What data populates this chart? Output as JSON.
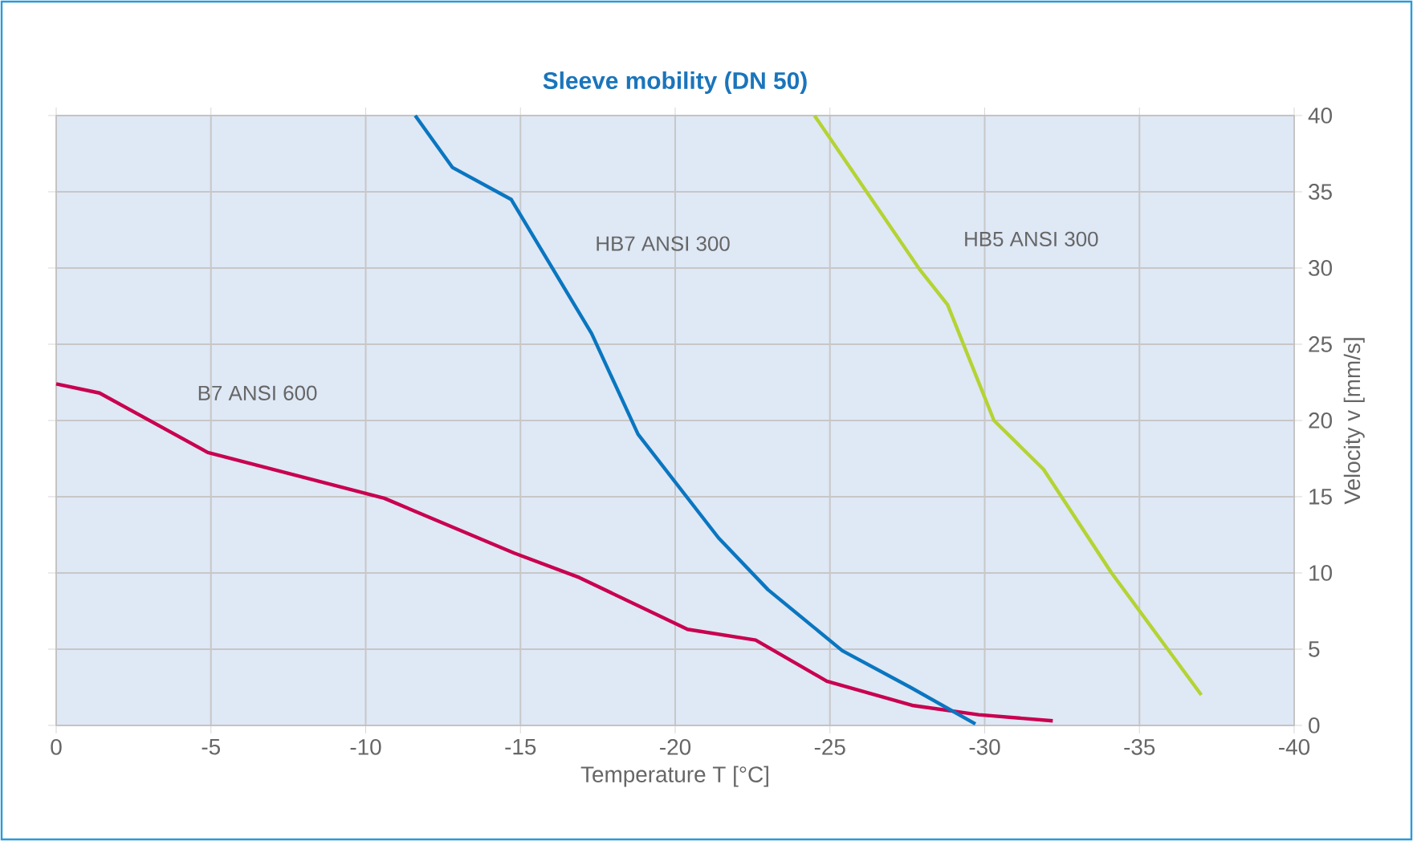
{
  "chart_data": {
    "type": "line",
    "title": "Sleeve mobility (DN 50)",
    "xlabel": "Temperature T [°C]",
    "ylabel": "Velocity v [mm/s]",
    "xlim": [
      0,
      -40
    ],
    "xticks": [
      0,
      -5,
      -10,
      -15,
      -20,
      -25,
      -30,
      -35,
      -40
    ],
    "ylim": [
      0,
      40
    ],
    "yticks": [
      0,
      5,
      10,
      15,
      20,
      25,
      30,
      35,
      40
    ],
    "grid": true,
    "line_style": "solid",
    "marker": "none",
    "series": [
      {
        "name": "B7 ANSI 600",
        "color": "#c8004f",
        "x": [
          0,
          -1.4,
          -4.9,
          -10.6,
          -14.8,
          -16.9,
          -20.4,
          -22.6,
          -24.9,
          -27.7,
          -29.8,
          -32.2
        ],
        "values": [
          22.4,
          21.8,
          17.9,
          14.9,
          11.3,
          9.7,
          6.3,
          5.6,
          2.9,
          1.3,
          0.7,
          0.3
        ]
      },
      {
        "name": "HB7 ANSI 300",
        "color": "#0a76c0",
        "x": [
          -11.6,
          -12.8,
          -14.7,
          -17.3,
          -18.8,
          -21.4,
          -23.0,
          -25.4,
          -27.6,
          -29.7
        ],
        "values": [
          40,
          36.6,
          34.5,
          25.7,
          19.1,
          12.3,
          8.9,
          4.9,
          2.5,
          0.1
        ]
      },
      {
        "name": "HB5 ANSI 300",
        "color": "#b4d334",
        "x": [
          -24.5,
          -27.9,
          -28.8,
          -30.3,
          -31.9,
          -34.1,
          -37.0
        ],
        "values": [
          40,
          29.9,
          27.6,
          20,
          16.8,
          10,
          2.0
        ]
      }
    ]
  }
}
